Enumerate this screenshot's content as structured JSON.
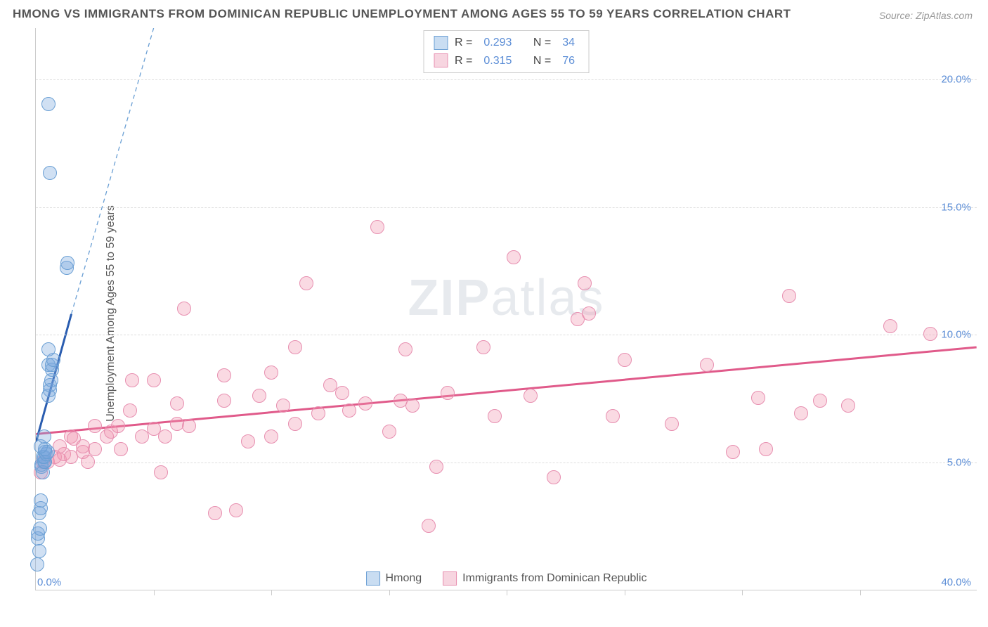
{
  "title": "HMONG VS IMMIGRANTS FROM DOMINICAN REPUBLIC UNEMPLOYMENT AMONG AGES 55 TO 59 YEARS CORRELATION CHART",
  "source": "Source: ZipAtlas.com",
  "ylabel": "Unemployment Among Ages 55 to 59 years",
  "watermark_a": "ZIP",
  "watermark_b": "atlas",
  "chart": {
    "type": "scatter",
    "xlim": [
      0,
      40
    ],
    "ylim": [
      0,
      22
    ],
    "x_origin_label": "0.0%",
    "x_max_label": "40.0%",
    "y_ticks": [
      5,
      10,
      15,
      20
    ],
    "y_tick_labels": [
      "5.0%",
      "10.0%",
      "15.0%",
      "20.0%"
    ],
    "x_minor_ticks": [
      5,
      10,
      15,
      20,
      25,
      30,
      35
    ],
    "background_color": "#ffffff",
    "grid_color": "#dddddd",
    "axis_color": "#cccccc",
    "tick_label_color": "#5b8dd6",
    "tick_label_fontsize": 15,
    "title_fontsize": 17,
    "title_color": "#555555",
    "ylabel_fontsize": 16
  },
  "series": {
    "hmong": {
      "label": "Hmong",
      "fill": "rgba(120,165,220,0.35)",
      "stroke": "#6a9fd4",
      "marker_radius": 10,
      "regression": {
        "solid": {
          "x1": 0,
          "y1": 5.8,
          "x2": 1.5,
          "y2": 10.8,
          "color": "#2a5db0",
          "width": 3
        },
        "dashed": {
          "x1": 1.5,
          "y1": 10.8,
          "x2": 5.0,
          "y2": 22.0,
          "color": "#6a9fd4",
          "width": 1.3,
          "dash": "6,5"
        }
      },
      "stats": {
        "R_label": "R =",
        "R": "0.293",
        "N_label": "N =",
        "N": "34"
      },
      "points": [
        [
          0.05,
          1.0
        ],
        [
          0.1,
          2.0
        ],
        [
          0.1,
          2.2
        ],
        [
          0.15,
          3.0
        ],
        [
          0.2,
          3.2
        ],
        [
          0.2,
          3.5
        ],
        [
          0.25,
          4.8
        ],
        [
          0.25,
          4.9
        ],
        [
          0.4,
          5.0
        ],
        [
          0.3,
          4.6
        ],
        [
          0.3,
          5.2
        ],
        [
          0.35,
          5.0
        ],
        [
          0.35,
          5.2
        ],
        [
          0.4,
          5.4
        ],
        [
          0.45,
          5.3
        ],
        [
          0.5,
          5.4
        ],
        [
          0.4,
          5.5
        ],
        [
          0.55,
          7.6
        ],
        [
          0.6,
          7.8
        ],
        [
          0.55,
          8.8
        ],
        [
          0.6,
          8.0
        ],
        [
          0.65,
          8.2
        ],
        [
          0.7,
          8.6
        ],
        [
          0.7,
          8.8
        ],
        [
          0.75,
          9.0
        ],
        [
          0.55,
          9.4
        ],
        [
          1.3,
          12.6
        ],
        [
          1.35,
          12.8
        ],
        [
          0.6,
          16.3
        ],
        [
          0.55,
          19.0
        ],
        [
          0.2,
          5.6
        ],
        [
          0.15,
          1.5
        ],
        [
          0.18,
          2.4
        ],
        [
          0.35,
          6.0
        ]
      ]
    },
    "dominican": {
      "label": "Immigrants from Dominican Republic",
      "fill": "rgba(240,150,175,0.35)",
      "stroke": "#e78fb0",
      "marker_radius": 10,
      "regression": {
        "solid": {
          "x1": 0,
          "y1": 6.1,
          "x2": 40,
          "y2": 9.5,
          "color": "#e05a8a",
          "width": 3
        }
      },
      "stats": {
        "R_label": "R =",
        "R": "0.315",
        "N_label": "N =",
        "N": "76"
      },
      "points": [
        [
          0.2,
          4.6
        ],
        [
          0.3,
          5.0
        ],
        [
          0.5,
          5.0
        ],
        [
          0.8,
          5.2
        ],
        [
          1.0,
          5.1
        ],
        [
          1.2,
          5.3
        ],
        [
          1.5,
          5.2
        ],
        [
          1.5,
          6.0
        ],
        [
          1.6,
          5.9
        ],
        [
          2.0,
          5.4
        ],
        [
          2.0,
          5.6
        ],
        [
          2.5,
          5.5
        ],
        [
          2.5,
          6.4
        ],
        [
          3.0,
          6.0
        ],
        [
          3.2,
          6.2
        ],
        [
          3.5,
          6.4
        ],
        [
          3.6,
          5.5
        ],
        [
          4.0,
          7.0
        ],
        [
          4.1,
          8.2
        ],
        [
          4.5,
          6.0
        ],
        [
          5.0,
          6.3
        ],
        [
          5.0,
          8.2
        ],
        [
          5.3,
          4.6
        ],
        [
          5.5,
          6.0
        ],
        [
          6.0,
          6.5
        ],
        [
          6.0,
          7.3
        ],
        [
          6.3,
          11.0
        ],
        [
          6.5,
          6.4
        ],
        [
          7.6,
          3.0
        ],
        [
          8.0,
          7.4
        ],
        [
          8.0,
          8.4
        ],
        [
          8.5,
          3.1
        ],
        [
          9.0,
          5.8
        ],
        [
          9.5,
          7.6
        ],
        [
          10.0,
          6.0
        ],
        [
          10.0,
          8.5
        ],
        [
          10.5,
          7.2
        ],
        [
          11.0,
          9.5
        ],
        [
          11.5,
          12.0
        ],
        [
          12.0,
          6.9
        ],
        [
          12.5,
          8.0
        ],
        [
          13.0,
          7.7
        ],
        [
          13.3,
          7.0
        ],
        [
          14.0,
          7.3
        ],
        [
          14.5,
          14.2
        ],
        [
          15.0,
          6.2
        ],
        [
          15.5,
          7.4
        ],
        [
          15.7,
          9.4
        ],
        [
          16.0,
          7.2
        ],
        [
          16.7,
          2.5
        ],
        [
          17.0,
          4.8
        ],
        [
          17.5,
          7.7
        ],
        [
          19.0,
          9.5
        ],
        [
          19.5,
          6.8
        ],
        [
          20.3,
          13.0
        ],
        [
          21.0,
          7.6
        ],
        [
          22.0,
          4.4
        ],
        [
          23.0,
          10.6
        ],
        [
          23.3,
          12.0
        ],
        [
          23.5,
          10.8
        ],
        [
          24.5,
          6.8
        ],
        [
          25.0,
          9.0
        ],
        [
          27.0,
          6.5
        ],
        [
          28.5,
          8.8
        ],
        [
          29.6,
          5.4
        ],
        [
          30.7,
          7.5
        ],
        [
          31.0,
          5.5
        ],
        [
          32.0,
          11.5
        ],
        [
          32.5,
          6.9
        ],
        [
          33.3,
          7.4
        ],
        [
          34.5,
          7.2
        ],
        [
          36.3,
          10.3
        ],
        [
          38.0,
          10.0
        ],
        [
          1.0,
          5.6
        ],
        [
          2.2,
          5.0
        ],
        [
          11.0,
          6.5
        ]
      ]
    }
  },
  "legend_box": {
    "swatch_blue_fill": "#c9ddf2",
    "swatch_blue_stroke": "#6a9fd4",
    "swatch_pink_fill": "#f7d5e0",
    "swatch_pink_stroke": "#e78fb0"
  }
}
